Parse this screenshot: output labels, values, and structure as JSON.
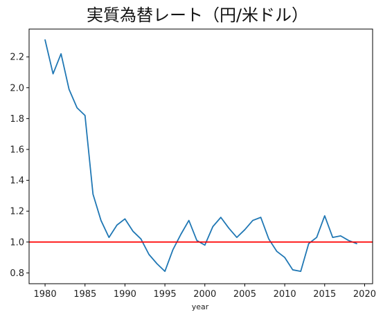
{
  "chart_data": {
    "type": "line",
    "title": "実質為替レート（円/米ドル）",
    "xlabel": "year",
    "ylabel": "",
    "xlim": [
      1978,
      2021
    ],
    "ylim": [
      0.73,
      2.38
    ],
    "xticks": [
      1980,
      1985,
      1990,
      1995,
      2000,
      2005,
      2010,
      2015,
      2020
    ],
    "yticks": [
      0.8,
      1.0,
      1.2,
      1.4,
      1.6,
      1.8,
      2.0,
      2.2
    ],
    "grid": false,
    "series": [
      {
        "color": "#1f77b4",
        "x": [
          1980,
          1981,
          1982,
          1983,
          1984,
          1985,
          1986,
          1987,
          1988,
          1989,
          1990,
          1991,
          1992,
          1993,
          1994,
          1995,
          1996,
          1997,
          1998,
          1999,
          2000,
          2001,
          2002,
          2003,
          2004,
          2005,
          2006,
          2007,
          2008,
          2009,
          2010,
          2011,
          2012,
          2013,
          2014,
          2015,
          2016,
          2017,
          2018,
          2019
        ],
        "values": [
          2.31,
          2.09,
          2.22,
          1.99,
          1.87,
          1.82,
          1.31,
          1.14,
          1.03,
          1.11,
          1.15,
          1.07,
          1.02,
          0.92,
          0.86,
          0.81,
          0.95,
          1.05,
          1.14,
          1.01,
          0.98,
          1.1,
          1.16,
          1.09,
          1.03,
          1.08,
          1.14,
          1.16,
          1.02,
          0.94,
          0.9,
          0.82,
          0.81,
          0.99,
          1.03,
          1.17,
          1.03,
          1.04,
          1.01,
          0.99
        ]
      }
    ],
    "reference_line": {
      "y": 1.0,
      "color": "#ff0000"
    }
  }
}
